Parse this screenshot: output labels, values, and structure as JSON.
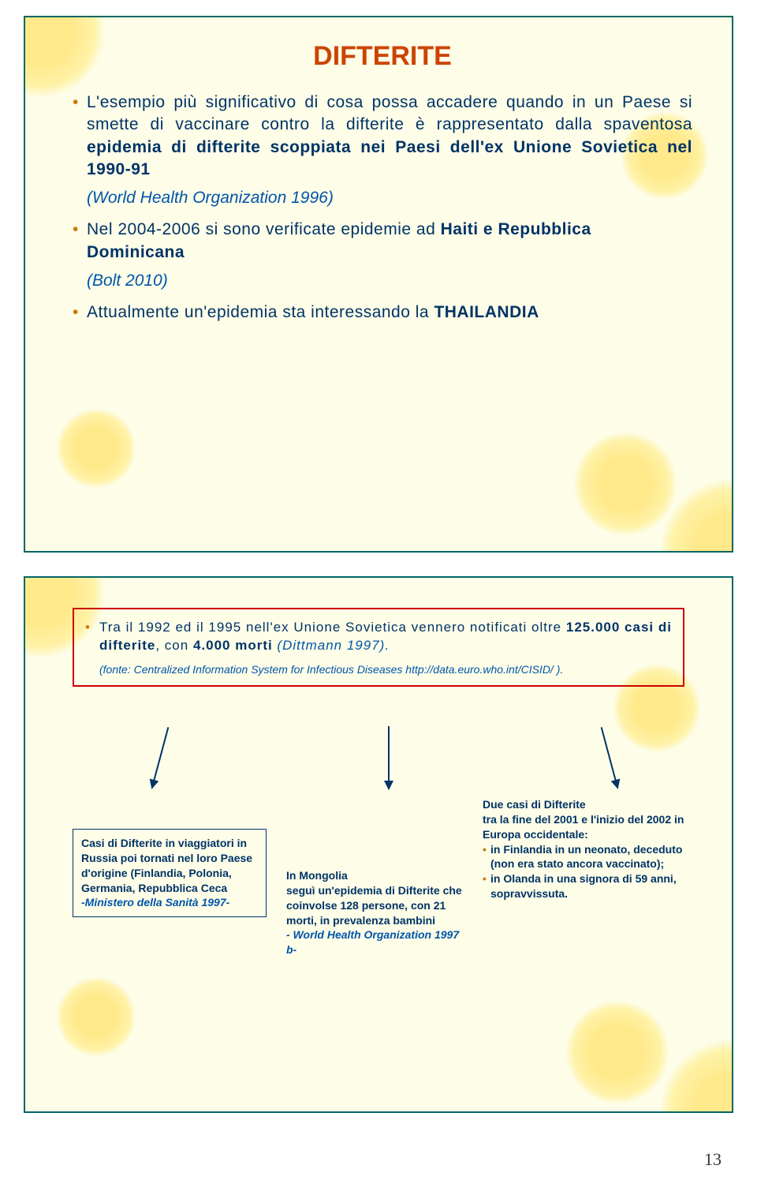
{
  "colors": {
    "slide_bg": "#fdfde8",
    "slide_border": "#006666",
    "title_color": "#cc4400",
    "bullet_text": "#003366",
    "bullet_marker": "#cc7a00",
    "italic_color": "#0055aa",
    "red_box_border": "#cc0000",
    "arrow_color": "#003366",
    "info_box_text": "#003366",
    "info_box_border": "#003366",
    "sun_yellow": "#fff2a8",
    "sun_core": "#ffe98a",
    "page_num": "#333333"
  },
  "slide1": {
    "title": "DIFTERITE",
    "title_fontsize": 34,
    "bullets": [
      {
        "text": "L'esempio più significativo di cosa possa accadere quando in un Paese si smette di vaccinare contro la difterite è rappresentato dalla spaventosa epidemia di difterite scoppiata nei Paesi dell'ex Unione Sovietica nel 1990-91",
        "bold_segments": [
          "epidemia di difterite scoppiata nei Paesi dell'ex Unione Sovietica nel 1990-91"
        ],
        "fontsize": 21
      },
      {
        "note": "(World Health Organization 1996)",
        "fontsize": 21
      },
      {
        "text_pre": "Nel 2004-2006 si sono verificate epidemie ad ",
        "bold_tail": "Haiti e Repubblica Dominicana",
        "fontsize": 21
      },
      {
        "note": "(Bolt 2010)",
        "fontsize": 21
      },
      {
        "text_pre": "Attualmente un'epidemia sta interessando la ",
        "bold_tail": "THAILANDIA",
        "fontsize": 21
      }
    ]
  },
  "slide2": {
    "red_box": {
      "bullet_pre": "Tra il 1992 ed il 1995 nell'ex Unione Sovietica vennero notificati oltre ",
      "bold1": "125.000 casi di difterite",
      "mid": ", con ",
      "bold2": "4.000 morti",
      "tail_italic": " (Dittmann 1997).",
      "source": "(fonte: Centralized Information System for Infectious Diseases http://data.euro.who.int/CISID/ )."
    },
    "box1": {
      "l1": "Casi di Difterite in viaggiatori in Russia poi tornati nel loro Paese d'origine (Finlandia, Polonia, Germania, Repubblica Ceca",
      "l2_italic": "-Ministero della Sanità 1997-"
    },
    "box2": {
      "l1": "In Mongolia",
      "l2": "seguì un'epidemia di Difterite che coinvolse 128 persone, con 21 morti, in prevalenza bambini",
      "l3_italic": "- World Health Organization 1997 b-"
    },
    "box3": {
      "l1": "Due casi di Difterite",
      "l2": "tra la fine del 2001 e l'inizio del 2002 in Europa occidentale:",
      "sb1": "in Finlandia in un neonato, deceduto (non era stato ancora vaccinato);",
      "sb2": "in Olanda in una signora di 59 anni, sopravvissuta."
    }
  },
  "page_number": "13"
}
